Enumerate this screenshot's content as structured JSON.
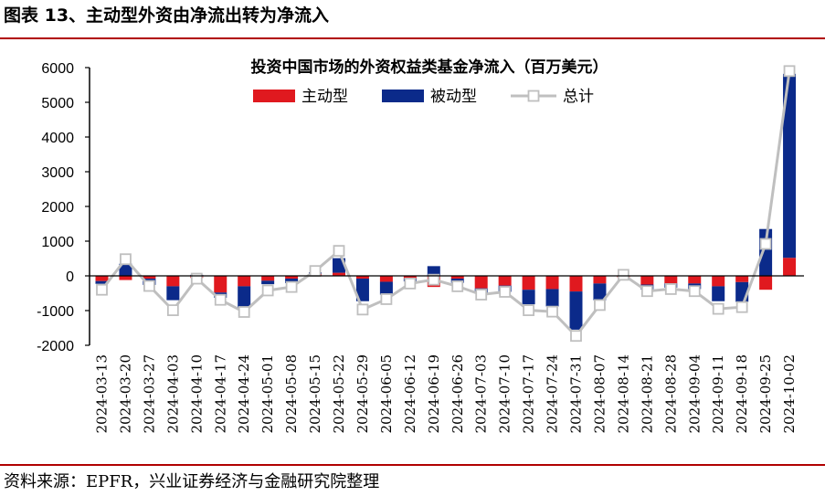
{
  "figure_title": "图表 13、主动型外资由净流出转为净流入",
  "source": "资料来源：EPFR，兴业证券经济与金融研究院整理",
  "colors": {
    "active": "#e0191f",
    "passive": "#0b2a8a",
    "total": "#bfbfbf",
    "rule": "#b00000"
  },
  "chart_data": {
    "type": "bar",
    "stacked": true,
    "title": "投资中国市场的外资权益类基金净流入（百万美元）",
    "legend": [
      "主动型",
      "被动型",
      "总计"
    ],
    "legend_position": "top-center",
    "ylim": [
      -2000,
      6000
    ],
    "yticks": [
      -2000,
      -1000,
      0,
      1000,
      2000,
      3000,
      4000,
      5000,
      6000
    ],
    "grid": false,
    "categories": [
      "2024-03-13",
      "2024-03-20",
      "2024-03-27",
      "2024-04-03",
      "2024-04-10",
      "2024-04-17",
      "2024-04-24",
      "2024-05-01",
      "2024-05-08",
      "2024-05-15",
      "2024-05-22",
      "2024-05-29",
      "2024-06-05",
      "2024-06-12",
      "2024-06-19",
      "2024-06-26",
      "2024-07-03",
      "2024-07-10",
      "2024-07-17",
      "2024-07-24",
      "2024-07-31",
      "2024-08-07",
      "2024-08-14",
      "2024-08-21",
      "2024-08-28",
      "2024-09-04",
      "2024-09-11",
      "2024-09-18",
      "2024-09-25",
      "2024-10-02"
    ],
    "series": [
      {
        "name": "主动型",
        "type": "bar",
        "values": [
          -150,
          -120,
          -80,
          -300,
          -60,
          -480,
          -300,
          -140,
          -80,
          60,
          90,
          -80,
          -170,
          -80,
          -320,
          -80,
          -360,
          -280,
          -400,
          -380,
          -450,
          -220,
          -40,
          -250,
          -220,
          -220,
          -300,
          -180,
          -400,
          520
        ]
      },
      {
        "name": "被动型",
        "type": "bar",
        "values": [
          -80,
          350,
          -180,
          -400,
          30,
          -150,
          -620,
          -100,
          -130,
          40,
          420,
          -650,
          -370,
          -80,
          280,
          -120,
          -130,
          -180,
          -420,
          -500,
          -1100,
          -480,
          0,
          -140,
          -120,
          -160,
          -430,
          -570,
          1350,
          5300
        ]
      },
      {
        "name": "总计",
        "type": "line",
        "values": [
          -400,
          480,
          -290,
          -990,
          -80,
          -690,
          -1040,
          -420,
          -320,
          140,
          720,
          -970,
          -670,
          -220,
          -110,
          -300,
          -540,
          -460,
          -990,
          -1030,
          -1730,
          -840,
          30,
          -440,
          -380,
          -440,
          -950,
          -900,
          920,
          5900
        ]
      }
    ]
  }
}
